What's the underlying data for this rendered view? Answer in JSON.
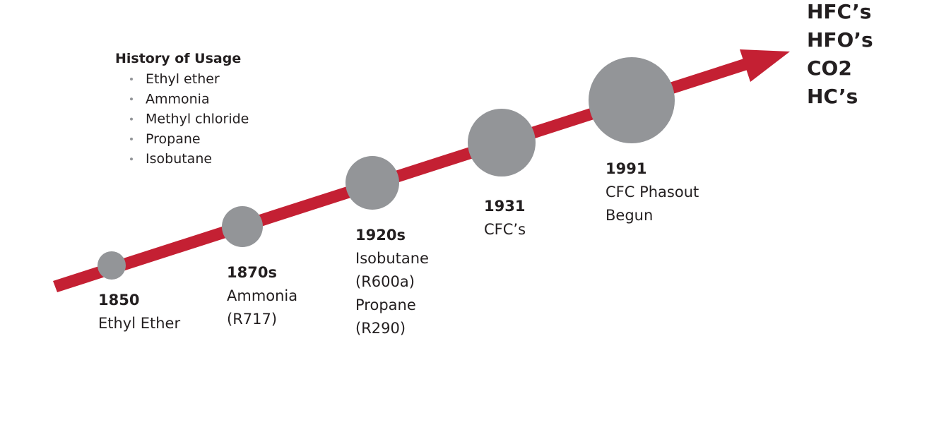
{
  "history": {
    "title": "History of Usage",
    "items": [
      "Ethyl ether",
      "Ammonia",
      "Methyl chloride",
      "Propane",
      "Isobutane"
    ]
  },
  "milestones": [
    {
      "year": "1850",
      "lines": [
        "Ethyl Ether"
      ]
    },
    {
      "year": "1870s",
      "lines": [
        "Ammonia",
        "(R717)"
      ]
    },
    {
      "year": "1920s",
      "lines": [
        "Isobutane",
        "(R600a)",
        "Propane",
        "(R290)"
      ]
    },
    {
      "year": "1931",
      "lines": [
        "CFC’s"
      ]
    },
    {
      "year": "1991",
      "lines": [
        "CFC Phasout",
        "Begun"
      ]
    }
  ],
  "future": [
    "HFC’s",
    "HFO’s",
    "CO2",
    "HC’s"
  ]
}
